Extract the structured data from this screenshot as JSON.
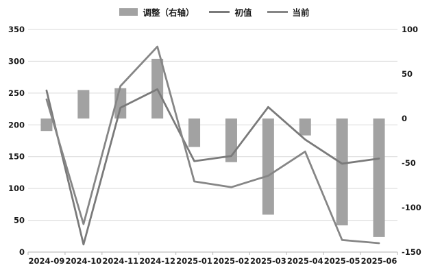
{
  "legend": {
    "items": [
      {
        "label": "调整（右轴）",
        "swatch": "bar"
      },
      {
        "label": "初值",
        "swatch": "line-initial"
      },
      {
        "label": "当前",
        "swatch": "line-current"
      }
    ]
  },
  "colors": {
    "background": "#ffffff",
    "bar": "#a2a2a2",
    "line_initial": "#7a7a7a",
    "line_current": "#868686",
    "grid": "#d9d9d9",
    "axis": "#bfbfbf",
    "text": "#1a1a1a"
  },
  "chart_data": {
    "type": "bar",
    "subtype": "combo bar+line, dual axis",
    "title": "",
    "xlabel": "",
    "ylabel": "",
    "grid": true,
    "legend_position": "top",
    "categories": [
      "2024-09",
      "2024-10",
      "2024-11",
      "2024-12",
      "2025-01",
      "2025-02",
      "2025-03",
      "2025-04",
      "2025-05",
      "2025-06"
    ],
    "series": [
      {
        "name": "调整（右轴）",
        "type": "bar",
        "axis": "right",
        "values": [
          -14,
          32,
          34,
          67,
          -32,
          -49,
          -108,
          -19,
          -120,
          -133
        ]
      },
      {
        "name": "初值",
        "type": "line",
        "axis": "left",
        "values": [
          254,
          12,
          227,
          256,
          143,
          151,
          228,
          177,
          139,
          147
        ]
      },
      {
        "name": "当前",
        "type": "line",
        "axis": "left",
        "values": [
          240,
          44,
          261,
          323,
          111,
          102,
          120,
          158,
          19,
          14
        ]
      }
    ],
    "left_axis": {
      "min": 0,
      "max": 350,
      "step": 50,
      "ticks": [
        350,
        300,
        250,
        200,
        150,
        100,
        50,
        0
      ]
    },
    "right_axis": {
      "min": -150,
      "max": 100,
      "step": 50,
      "ticks": [
        100,
        50,
        0,
        -50,
        -100,
        -150
      ]
    }
  }
}
